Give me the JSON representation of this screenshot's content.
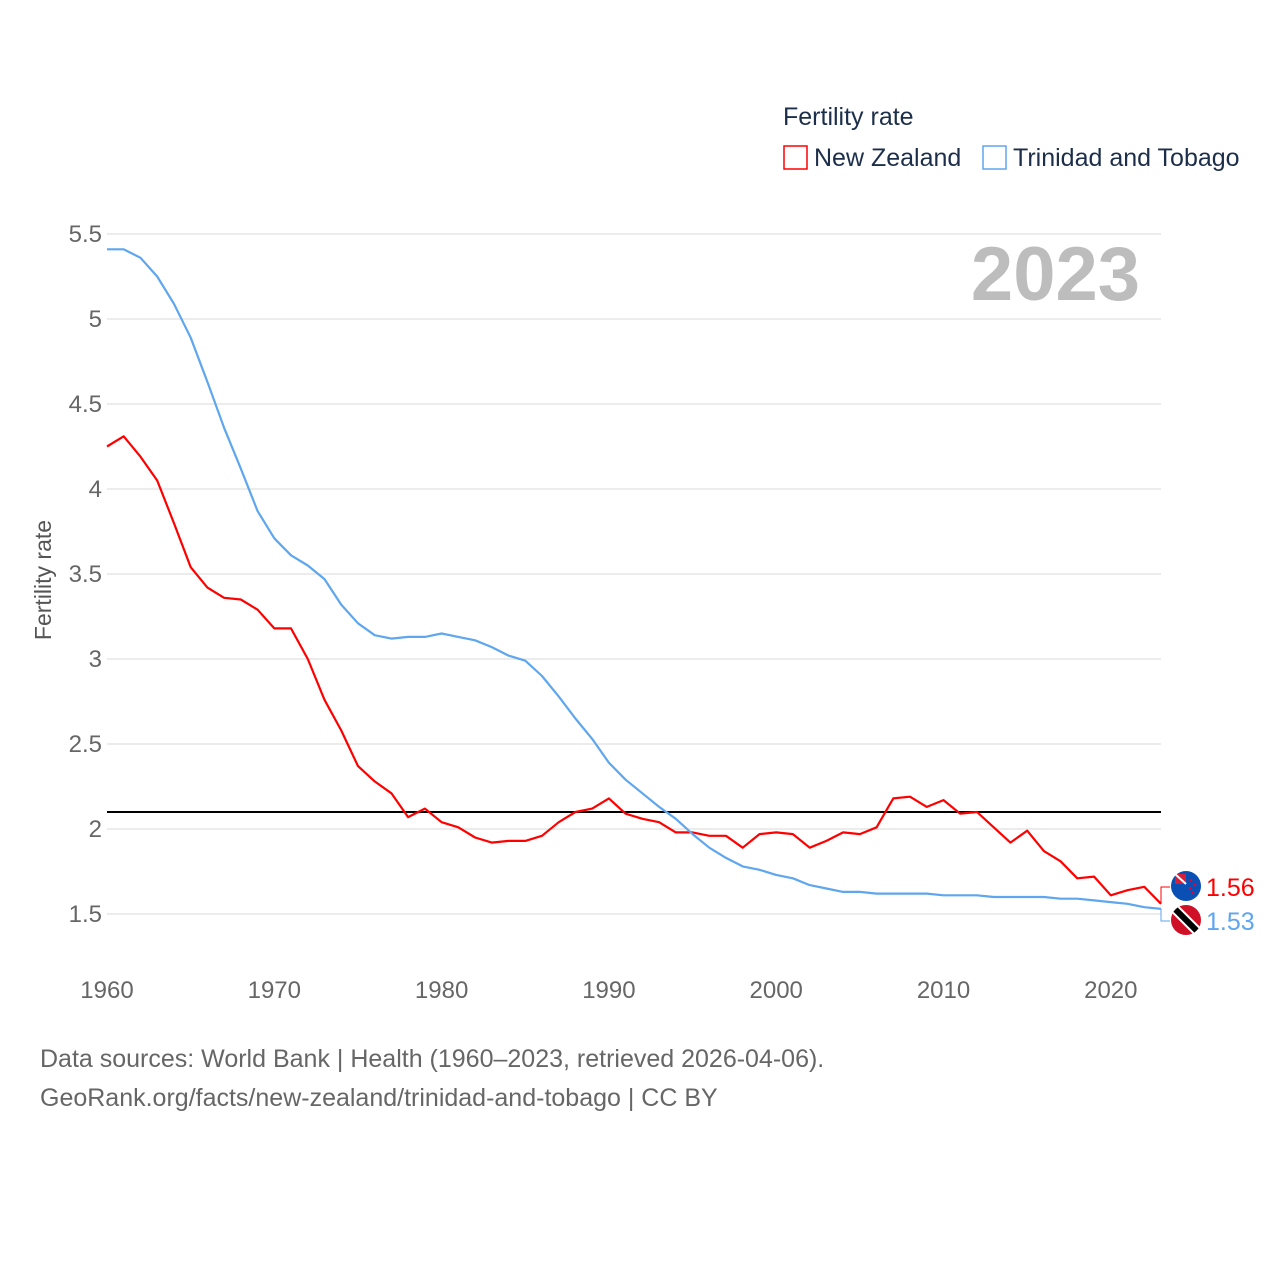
{
  "chart_data": {
    "type": "line",
    "title": "",
    "legend_title": "Fertility rate",
    "legend_position": "top-right",
    "ylabel": "Fertility rate",
    "xlabel": "",
    "xlim": [
      1960,
      2023
    ],
    "ylim": [
      1.5,
      5.5
    ],
    "x_ticks": [
      1960,
      1970,
      1980,
      1990,
      2000,
      2010,
      2020
    ],
    "y_ticks": [
      1.5,
      2,
      2.5,
      3,
      3.5,
      4,
      4.5,
      5,
      5.5
    ],
    "y_tick_labels": [
      "1.5",
      "2",
      "2.5",
      "3",
      "3.5",
      "4",
      "4.5",
      "5",
      "5.5"
    ],
    "grid": true,
    "year_label": "2023",
    "reference_line": 2.1,
    "x": [
      1960,
      1961,
      1962,
      1963,
      1964,
      1965,
      1966,
      1967,
      1968,
      1969,
      1970,
      1971,
      1972,
      1973,
      1974,
      1975,
      1976,
      1977,
      1978,
      1979,
      1980,
      1981,
      1982,
      1983,
      1984,
      1985,
      1986,
      1987,
      1988,
      1989,
      1990,
      1991,
      1992,
      1993,
      1994,
      1995,
      1996,
      1997,
      1998,
      1999,
      2000,
      2001,
      2002,
      2003,
      2004,
      2005,
      2006,
      2007,
      2008,
      2009,
      2010,
      2011,
      2012,
      2013,
      2014,
      2015,
      2016,
      2017,
      2018,
      2019,
      2020,
      2021,
      2022,
      2023
    ],
    "series": [
      {
        "name": "New Zealand",
        "color": "#ff0000",
        "end_label": "1.56",
        "flag": "new-zealand-flag",
        "values": [
          4.25,
          4.31,
          4.19,
          4.05,
          3.8,
          3.54,
          3.42,
          3.36,
          3.35,
          3.29,
          3.18,
          3.18,
          3.0,
          2.76,
          2.58,
          2.37,
          2.28,
          2.21,
          2.07,
          2.12,
          2.04,
          2.01,
          1.95,
          1.92,
          1.93,
          1.93,
          1.96,
          2.04,
          2.1,
          2.12,
          2.18,
          2.09,
          2.06,
          2.04,
          1.98,
          1.98,
          1.96,
          1.96,
          1.89,
          1.97,
          1.98,
          1.97,
          1.89,
          1.93,
          1.98,
          1.97,
          2.01,
          2.18,
          2.19,
          2.13,
          2.17,
          2.09,
          2.1,
          2.01,
          1.92,
          1.99,
          1.87,
          1.81,
          1.71,
          1.72,
          1.61,
          1.64,
          1.66,
          1.56
        ]
      },
      {
        "name": "Trinidad and Tobago",
        "color": "#5ea6ee",
        "end_label": "1.53",
        "flag": "trinidad-and-tobago-flag",
        "values": [
          5.41,
          5.41,
          5.36,
          5.25,
          5.09,
          4.89,
          4.63,
          4.36,
          4.12,
          3.87,
          3.71,
          3.61,
          3.55,
          3.47,
          3.32,
          3.21,
          3.14,
          3.12,
          3.13,
          3.13,
          3.15,
          3.13,
          3.11,
          3.07,
          3.02,
          2.99,
          2.9,
          2.78,
          2.65,
          2.53,
          2.39,
          2.29,
          2.21,
          2.13,
          2.06,
          1.97,
          1.89,
          1.83,
          1.78,
          1.76,
          1.73,
          1.71,
          1.67,
          1.65,
          1.63,
          1.63,
          1.62,
          1.62,
          1.62,
          1.62,
          1.61,
          1.61,
          1.61,
          1.6,
          1.6,
          1.6,
          1.6,
          1.59,
          1.59,
          1.58,
          1.57,
          1.56,
          1.54,
          1.53
        ]
      }
    ]
  },
  "footer": {
    "line1": "Data sources: World Bank | Health (1960–2023, retrieved 2026-04-06).",
    "line2": "GeoRank.org/facts/new-zealand/trinidad-and-tobago | CC BY"
  }
}
